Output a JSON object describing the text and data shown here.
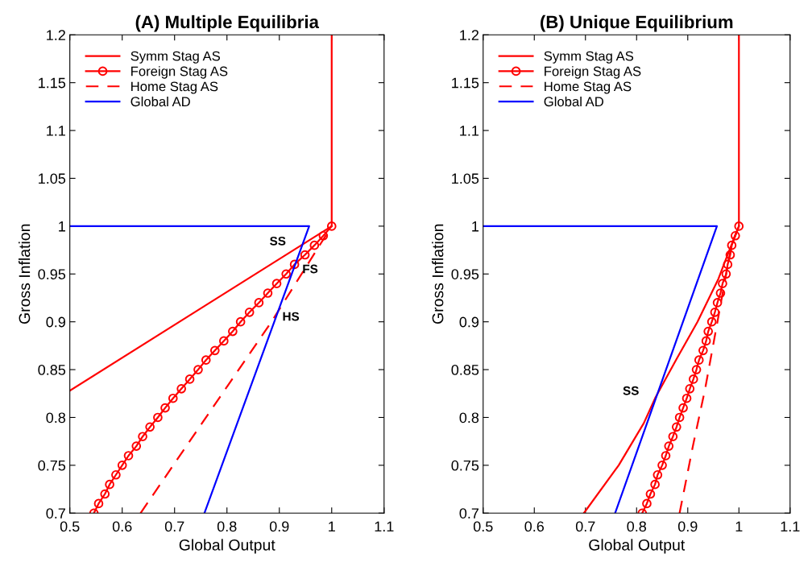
{
  "chart_data": [
    {
      "type": "line",
      "title": "(A) Multiple Equilibria",
      "xlabel": "Global Output",
      "ylabel": "Gross Inflation",
      "legend": "top left",
      "xlim": [
        0.5,
        1.1
      ],
      "xticks": [
        0.5,
        0.6,
        0.7,
        0.8,
        0.9,
        1,
        1.1
      ],
      "ylim": [
        0.7,
        1.2
      ],
      "yticks": [
        0.7,
        0.75,
        0.8,
        0.85,
        0.9,
        0.95,
        1,
        1.05,
        1.1,
        1.15,
        1.2
      ],
      "series": [
        {
          "name": "Symm Stag AS",
          "color": "#ff0000",
          "marker": "none",
          "line_style": "solid",
          "x": [
            0.5,
            1,
            1
          ],
          "values": [
            0.828,
            1,
            1.2
          ]
        },
        {
          "name": "Foreign Stag AS",
          "color": "#ff0000",
          "marker": "circle",
          "line_style": "solid",
          "x": [
            0.546,
            0.555,
            0.567,
            0.576,
            0.588,
            0.6,
            0.612,
            0.627,
            0.639,
            0.653,
            0.668,
            0.682,
            0.697,
            0.713,
            0.729,
            0.745,
            0.76,
            0.777,
            0.794,
            0.811,
            0.826,
            0.843,
            0.861,
            0.878,
            0.895,
            0.913,
            0.929,
            0.949,
            0.967,
            0.984,
            1
          ],
          "values": [
            0.7,
            0.71,
            0.72,
            0.73,
            0.74,
            0.75,
            0.76,
            0.77,
            0.78,
            0.79,
            0.8,
            0.81,
            0.82,
            0.83,
            0.84,
            0.85,
            0.86,
            0.87,
            0.88,
            0.89,
            0.9,
            0.91,
            0.92,
            0.93,
            0.94,
            0.95,
            0.96,
            0.97,
            0.98,
            0.99,
            1
          ]
        },
        {
          "name": "Home Stag AS",
          "color": "#ff0000",
          "marker": "none",
          "line_style": "dashed",
          "x": [
            0.635,
            0.76,
            0.885,
            1
          ],
          "values": [
            0.7,
            0.8,
            0.9,
            1
          ]
        },
        {
          "name": "Global AD",
          "color": "#0000ff",
          "marker": "none",
          "line_style": "solid",
          "x": [
            0.5,
            0.957,
            0.757
          ],
          "values": [
            1,
            1,
            0.7
          ]
        }
      ],
      "annotations": [
        {
          "text": "SS",
          "x": 0.944,
          "y": 0.981
        },
        {
          "text": "FS",
          "x": 0.929,
          "y": 0.96
        },
        {
          "text": "HS",
          "x": 0.905,
          "y": 0.922
        }
      ]
    },
    {
      "type": "line",
      "title": "(B) Unique Equilibrium",
      "xlabel": "Global Output",
      "ylabel": "Gross Inflation",
      "legend": "top left",
      "xlim": [
        0.5,
        1.1
      ],
      "xticks": [
        0.5,
        0.6,
        0.7,
        0.8,
        0.9,
        1,
        1.1
      ],
      "ylim": [
        0.7,
        1.2
      ],
      "yticks": [
        0.7,
        0.75,
        0.8,
        0.85,
        0.9,
        0.95,
        1,
        1.05,
        1.1,
        1.15,
        1.2
      ],
      "series": [
        {
          "name": "Symm Stag AS",
          "color": "#ff0000",
          "marker": "none",
          "line_style": "solid",
          "x": [
            0.697,
            0.765,
            0.814,
            0.837,
            0.878,
            0.919,
            0.96,
            0.98,
            1,
            1
          ],
          "values": [
            0.7,
            0.75,
            0.794,
            0.821,
            0.861,
            0.9,
            0.945,
            0.973,
            1,
            1.2
          ]
        },
        {
          "name": "Foreign Stag AS",
          "color": "#ff0000",
          "marker": "circle",
          "line_style": "solid",
          "x": [
            0.811,
            0.82,
            0.827,
            0.836,
            0.841,
            0.85,
            0.857,
            0.863,
            0.871,
            0.878,
            0.884,
            0.891,
            0.898,
            0.904,
            0.911,
            0.917,
            0.922,
            0.93,
            0.936,
            0.94,
            0.947,
            0.953,
            0.958,
            0.964,
            0.968,
            0.975,
            0.978,
            0.983,
            0.986,
            0.993,
            1
          ],
          "values": [
            0.7,
            0.71,
            0.72,
            0.73,
            0.74,
            0.75,
            0.76,
            0.77,
            0.78,
            0.79,
            0.8,
            0.81,
            0.82,
            0.83,
            0.84,
            0.85,
            0.86,
            0.87,
            0.88,
            0.89,
            0.9,
            0.91,
            0.92,
            0.93,
            0.94,
            0.95,
            0.96,
            0.97,
            0.98,
            0.99,
            1
          ]
        },
        {
          "name": "Home Stag AS",
          "color": "#ff0000",
          "marker": "none",
          "line_style": "dashed",
          "x": [
            0.884,
            0.91,
            0.934,
            0.958,
            0.986,
            1
          ],
          "values": [
            0.7,
            0.77,
            0.83,
            0.9,
            0.982,
            1
          ]
        },
        {
          "name": "Global AD",
          "color": "#0000ff",
          "marker": "none",
          "line_style": "solid",
          "x": [
            0.5,
            0.957,
            0.758
          ],
          "values": [
            1,
            1,
            0.7
          ]
        }
      ],
      "annotations": [
        {
          "text": "SS",
          "x": 0.837,
          "y": 0.821
        }
      ]
    }
  ]
}
